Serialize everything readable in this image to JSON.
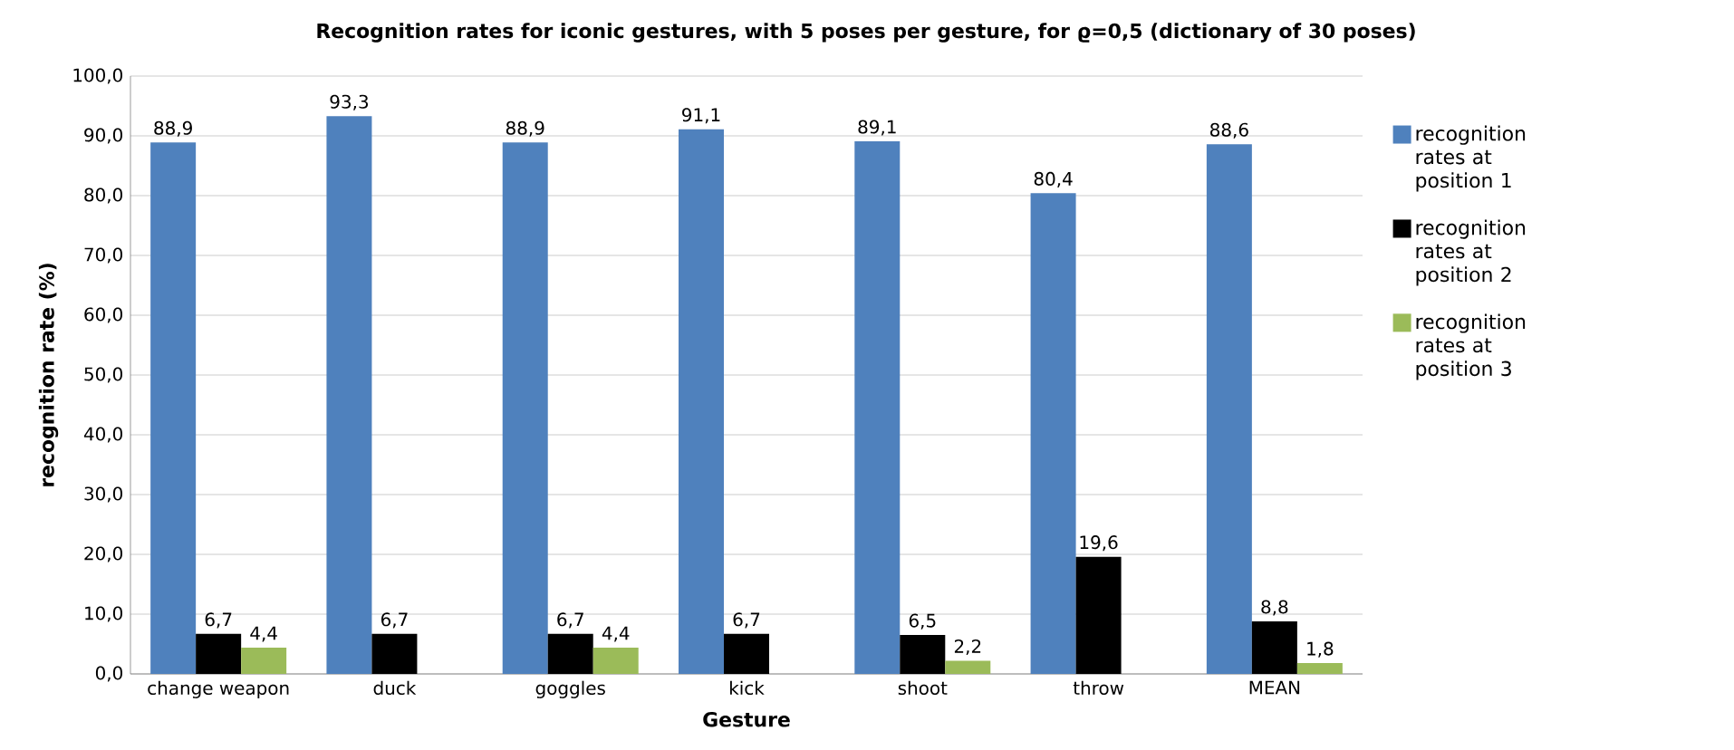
{
  "chart_data": {
    "type": "bar",
    "title": "Recognition rates for iconic gestures, with 5 poses per gesture, for ϱ=0,5 (dictionary of 30 poses)",
    "xlabel": "Gesture",
    "ylabel": "recognition rate (%)",
    "categories": [
      "change weapon",
      "duck",
      "goggles",
      "kick",
      "shoot",
      "throw",
      "MEAN"
    ],
    "series": [
      {
        "name": "recognition rates at position 1",
        "color": "#4f81bd",
        "values": [
          88.9,
          93.3,
          88.9,
          91.1,
          89.1,
          80.4,
          88.6
        ],
        "value_labels": [
          "88,9",
          "93,3",
          "88,9",
          "91,1",
          "89,1",
          "80,4",
          "88,6"
        ]
      },
      {
        "name": "recognition rates at position 2",
        "color": "#000000",
        "values": [
          6.7,
          6.7,
          6.7,
          6.7,
          6.5,
          19.6,
          8.8
        ],
        "value_labels": [
          "6,7",
          "6,7",
          "6,7",
          "6,7",
          "6,5",
          "19,6",
          "8,8"
        ]
      },
      {
        "name": "recognition rates at position 3",
        "color": "#9bbb59",
        "values": [
          4.4,
          null,
          4.4,
          null,
          2.2,
          null,
          1.8
        ],
        "value_labels": [
          "4,4",
          null,
          "4,4",
          null,
          "2,2",
          null,
          "1,8"
        ]
      }
    ],
    "ylim": [
      0,
      100
    ],
    "yticks": [
      {
        "value": 0,
        "label": "0,0"
      },
      {
        "value": 10,
        "label": "10,0"
      },
      {
        "value": 20,
        "label": "20,0"
      },
      {
        "value": 30,
        "label": "30,0"
      },
      {
        "value": 40,
        "label": "40,0"
      },
      {
        "value": 50,
        "label": "50,0"
      },
      {
        "value": 60,
        "label": "60,0"
      },
      {
        "value": 70,
        "label": "70,0"
      },
      {
        "value": 80,
        "label": "80,0"
      },
      {
        "value": 90,
        "label": "90,0"
      },
      {
        "value": 100,
        "label": "100,0"
      }
    ],
    "grid": "y",
    "legend": "right"
  }
}
